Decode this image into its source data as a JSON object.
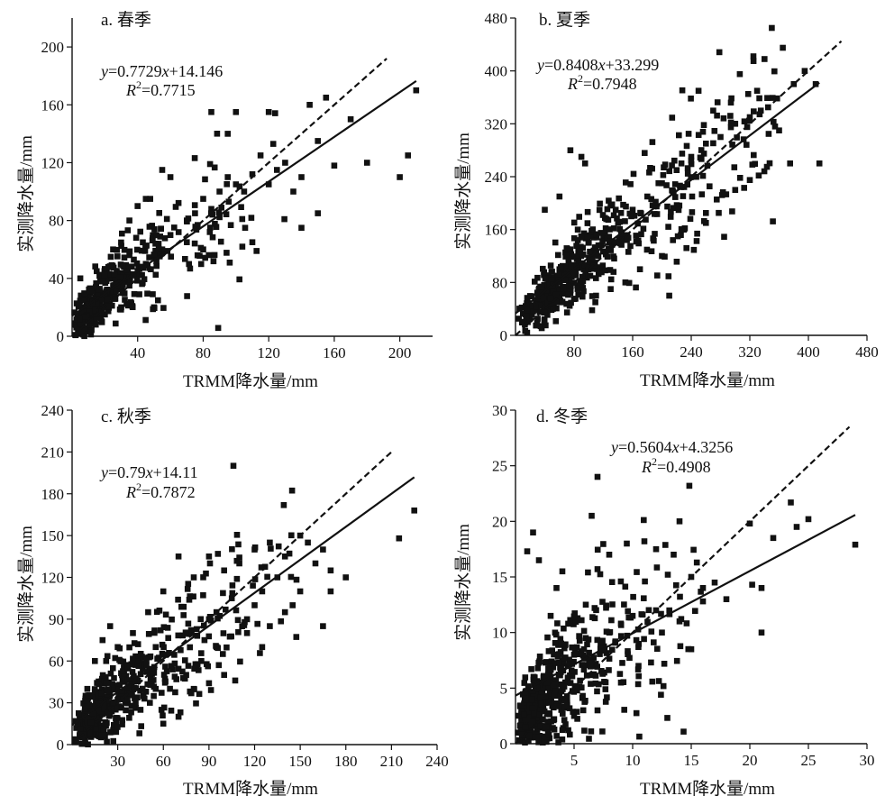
{
  "figure": {
    "panels": [
      {
        "title": "a. 春季",
        "equation": {
          "y": "y",
          "eq_mid": "=0.7729",
          "x": "x",
          "eq_tail": "+14.146",
          "r": "R",
          "r_sup": "2",
          "r_val": "=0.7715"
        },
        "chart_data": {
          "type": "scatter",
          "xlabel": "TRMM降水量/mm",
          "ylabel": "实测降水量/mm",
          "xlim": [
            0,
            220
          ],
          "ylim": [
            0,
            220
          ],
          "xticks": [
            40,
            80,
            120,
            160,
            200
          ],
          "yticks": [
            0,
            40,
            80,
            120,
            160,
            200
          ],
          "fit": {
            "slope": 0.7729,
            "intercept": 14.146,
            "x_range": [
              0,
              210
            ]
          },
          "reference_line": {
            "slope": 1,
            "intercept": 0,
            "x_range": [
              0,
              192
            ]
          },
          "points_anchor": [
            [
              2,
              8
            ],
            [
              5,
              12
            ],
            [
              8,
              18
            ],
            [
              12,
              22
            ],
            [
              15,
              28
            ],
            [
              20,
              30
            ],
            [
              25,
              35
            ],
            [
              30,
              40
            ],
            [
              35,
              35
            ],
            [
              40,
              45
            ],
            [
              45,
              50
            ],
            [
              50,
              55
            ],
            [
              55,
              60
            ],
            [
              60,
              70
            ],
            [
              65,
              72
            ],
            [
              70,
              80
            ],
            [
              75,
              85
            ],
            [
              80,
              95
            ],
            [
              85,
              88
            ],
            [
              90,
              100
            ],
            [
              95,
              110
            ],
            [
              100,
              105
            ],
            [
              105,
              100
            ],
            [
              110,
              112
            ],
            [
              115,
              125
            ],
            [
              120,
              105
            ],
            [
              125,
              115
            ],
            [
              130,
              120
            ],
            [
              135,
              100
            ],
            [
              140,
              110
            ],
            [
              145,
              160
            ],
            [
              150,
              135
            ],
            [
              155,
              165
            ],
            [
              160,
              118
            ],
            [
              170,
              150
            ],
            [
              180,
              120
            ],
            [
              200,
              110
            ],
            [
              205,
              125
            ],
            [
              210,
              170
            ],
            [
              85,
              155
            ],
            [
              95,
              140
            ],
            [
              100,
              155
            ],
            [
              120,
              155
            ],
            [
              60,
              110
            ],
            [
              55,
              115
            ],
            [
              45,
              95
            ],
            [
              40,
              90
            ],
            [
              70,
              65
            ],
            [
              80,
              60
            ],
            [
              110,
              65
            ],
            [
              140,
              75
            ],
            [
              150,
              85
            ],
            [
              30,
              20
            ],
            [
              20,
              15
            ],
            [
              10,
              5
            ],
            [
              5,
              40
            ],
            [
              15,
              45
            ],
            [
              25,
              60
            ],
            [
              35,
              80
            ],
            [
              50,
              20
            ]
          ],
          "points_generated": {
            "count": 400,
            "x_max": 140,
            "shape": "lognormal",
            "x_log_mean": 3.2,
            "x_log_sd": 1.0,
            "noise_base": 6,
            "noise_scale": 0.2
          }
        }
      },
      {
        "title": "b. 夏季",
        "equation": {
          "y": "y",
          "eq_mid": "=0.8408",
          "x": "x",
          "eq_tail": "+33.299",
          "r": "R",
          "r_sup": "2",
          "r_val": "=0.7948"
        },
        "chart_data": {
          "type": "scatter",
          "xlabel": "TRMM降水量/mm",
          "ylabel": "实测降水量/mm",
          "xlim": [
            0,
            480
          ],
          "ylim": [
            0,
            480
          ],
          "xticks": [
            80,
            160,
            240,
            320,
            400,
            480
          ],
          "yticks": [
            0,
            80,
            160,
            240,
            320,
            400,
            480
          ],
          "fit": {
            "slope": 0.8408,
            "intercept": 33.299,
            "x_range": [
              0,
              415
            ]
          },
          "reference_line": {
            "slope": 1,
            "intercept": 0,
            "x_range": [
              0,
              445
            ]
          },
          "points_anchor": [
            [
              350,
              465
            ],
            [
              365,
              435
            ],
            [
              340,
              418
            ],
            [
              325,
              415
            ],
            [
              395,
              400
            ],
            [
              380,
              380
            ],
            [
              410,
              380
            ],
            [
              415,
              260
            ],
            [
              375,
              260
            ],
            [
              335,
              340
            ],
            [
              320,
              330
            ],
            [
              300,
              320
            ],
            [
              280,
              300
            ],
            [
              260,
              290
            ],
            [
              240,
              270
            ],
            [
              220,
              250
            ],
            [
              200,
              230
            ],
            [
              180,
              210
            ],
            [
              160,
              190
            ],
            [
              140,
              170
            ],
            [
              120,
              150
            ],
            [
              100,
              140
            ],
            [
              90,
              270
            ],
            [
              95,
              260
            ],
            [
              75,
              280
            ],
            [
              60,
              210
            ],
            [
              40,
              190
            ],
            [
              210,
              60
            ],
            [
              250,
              370
            ],
            [
              270,
              340
            ],
            [
              230,
              160
            ],
            [
              260,
              185
            ],
            [
              300,
              220
            ],
            [
              320,
              235
            ],
            [
              200,
              120
            ],
            [
              170,
              100
            ],
            [
              150,
              80
            ],
            [
              130,
              70
            ],
            [
              110,
              60
            ],
            [
              80,
              55
            ],
            [
              30,
              40
            ],
            [
              20,
              30
            ],
            [
              10,
              20
            ],
            [
              50,
              70
            ],
            [
              60,
              100
            ],
            [
              75,
              130
            ],
            [
              85,
              160
            ],
            [
              330,
              370
            ],
            [
              345,
              345
            ],
            [
              360,
              310
            ]
          ],
          "points_generated": {
            "count": 520,
            "x_max": 360,
            "shape": "lognormal",
            "x_log_mean": 4.55,
            "x_log_sd": 0.95,
            "noise_base": 12,
            "noise_scale": 0.2
          }
        }
      },
      {
        "title": "c. 秋季",
        "equation": {
          "y": "y",
          "eq_mid": "=0.79",
          "x": "x",
          "eq_tail": "+14.11",
          "r": "R",
          "r_sup": "2",
          "r_val": "=0.7872"
        },
        "chart_data": {
          "type": "scatter",
          "xlabel": "TRMM降水量/mm",
          "ylabel": "实测降水量/mm",
          "xlim": [
            0,
            240
          ],
          "ylim": [
            0,
            240
          ],
          "xticks": [
            30,
            60,
            90,
            120,
            150,
            180,
            210,
            240
          ],
          "yticks": [
            0,
            30,
            60,
            90,
            120,
            150,
            180,
            210,
            240
          ],
          "fit": {
            "slope": 0.79,
            "intercept": 14.11,
            "x_range": [
              0,
              225
            ]
          },
          "reference_line": {
            "slope": 1,
            "intercept": 0,
            "x_range": [
              0,
              210
            ]
          },
          "points_anchor": [
            [
              225,
              168
            ],
            [
              215,
              148
            ],
            [
              180,
              120
            ],
            [
              170,
              110
            ],
            [
              165,
              140
            ],
            [
              160,
              130
            ],
            [
              155,
              145
            ],
            [
              150,
              150
            ],
            [
              140,
              135
            ],
            [
              130,
              145
            ],
            [
              120,
              140
            ],
            [
              110,
              130
            ],
            [
              100,
              125
            ],
            [
              90,
              135
            ],
            [
              80,
              120
            ],
            [
              70,
              135
            ],
            [
              60,
              110
            ],
            [
              50,
              95
            ],
            [
              40,
              80
            ],
            [
              30,
              70
            ],
            [
              25,
              85
            ],
            [
              20,
              75
            ],
            [
              15,
              60
            ],
            [
              10,
              40
            ],
            [
              5,
              20
            ],
            [
              165,
              85
            ],
            [
              150,
              110
            ],
            [
              140,
              95
            ],
            [
              130,
              85
            ],
            [
              115,
              80
            ],
            [
              100,
              50
            ],
            [
              95,
              70
            ],
            [
              85,
              60
            ],
            [
              75,
              50
            ],
            [
              55,
              40
            ],
            [
              45,
              25
            ],
            [
              35,
              30
            ],
            [
              60,
              15
            ],
            [
              70,
              20
            ],
            [
              80,
              40
            ],
            [
              120,
              100
            ],
            [
              125,
              110
            ],
            [
              135,
              120
            ],
            [
              90,
              90
            ],
            [
              105,
              105
            ],
            [
              115,
              90
            ],
            [
              125,
              70
            ],
            [
              145,
              100
            ],
            [
              170,
              125
            ],
            [
              55,
              70
            ]
          ],
          "points_generated": {
            "count": 480,
            "x_max": 150,
            "shape": "lognormal",
            "x_log_mean": 3.5,
            "x_log_sd": 0.95,
            "noise_base": 8,
            "noise_scale": 0.22
          }
        }
      },
      {
        "title": "d. 冬季",
        "equation": {
          "y": "y",
          "eq_mid": "=0.5604",
          "x": "x",
          "eq_tail": "+4.3256",
          "r": "R",
          "r_sup": "2",
          "r_val": "=0.4908"
        },
        "chart_data": {
          "type": "scatter",
          "xlabel": "TRMM降水量/mm",
          "ylabel": "实测降水量/mm",
          "xlim": [
            0,
            30
          ],
          "ylim": [
            0,
            30
          ],
          "xticks": [
            5,
            10,
            15,
            20,
            25,
            30
          ],
          "yticks": [
            0,
            5,
            10,
            15,
            20,
            25,
            30
          ],
          "fit": {
            "slope": 0.5604,
            "intercept": 4.3256,
            "x_range": [
              0,
              29
            ]
          },
          "reference_line": {
            "slope": 1,
            "intercept": 0,
            "x_range": [
              0,
              28.5
            ]
          },
          "points_anchor": [
            [
              7,
              24
            ],
            [
              6.5,
              20.5
            ],
            [
              1.5,
              19
            ],
            [
              2,
              16.5
            ],
            [
              1,
              17.3
            ],
            [
              4,
              15.5
            ],
            [
              3.5,
              14
            ],
            [
              7,
              15.7
            ],
            [
              8,
              17
            ],
            [
              9.5,
              18
            ],
            [
              11,
              18.2
            ],
            [
              12,
              17.5
            ],
            [
              13.5,
              17
            ],
            [
              15,
              15
            ],
            [
              13,
              15.2
            ],
            [
              14,
              20
            ],
            [
              16,
              14
            ],
            [
              17,
              14.5
            ],
            [
              20,
              19.8
            ],
            [
              20.2,
              14.3
            ],
            [
              21,
              14
            ],
            [
              22,
              18.5
            ],
            [
              23.5,
              21.7
            ],
            [
              24,
              19.5
            ],
            [
              25,
              20.2
            ],
            [
              29,
              17.9
            ],
            [
              21,
              10
            ],
            [
              15,
              8.5
            ],
            [
              16,
              12.8
            ],
            [
              18,
              13
            ],
            [
              12,
              12
            ],
            [
              10,
              11.5
            ],
            [
              9,
              10.8
            ],
            [
              8,
              10
            ],
            [
              6,
              9.5
            ],
            [
              5,
              8
            ],
            [
              4,
              7.5
            ],
            [
              3,
              6
            ],
            [
              2,
              5.5
            ],
            [
              1,
              4
            ],
            [
              0.5,
              2
            ],
            [
              0.2,
              1
            ],
            [
              5,
              2.5
            ],
            [
              7,
              3
            ],
            [
              9,
              5.5
            ],
            [
              10.5,
              7
            ],
            [
              12.5,
              10
            ],
            [
              14,
              11
            ],
            [
              6,
              12.5
            ],
            [
              3,
              11.5
            ]
          ],
          "points_generated": {
            "count": 500,
            "x_max": 16,
            "shape": "lognormal",
            "x_log_mean": 1.2,
            "x_log_sd": 0.9,
            "noise_base": 1.6,
            "noise_scale": 0.25
          }
        }
      }
    ]
  }
}
